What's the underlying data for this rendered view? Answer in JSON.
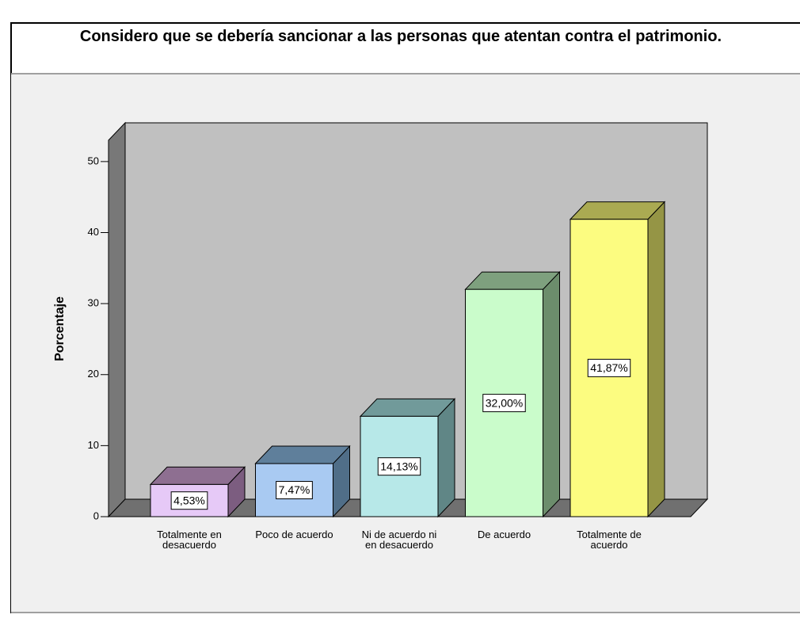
{
  "chart_data": {
    "type": "bar3d",
    "title": "Considero que se debería sancionar a las personas que atentan contra el patrimonio.",
    "ylabel": "Porcentaje",
    "categories": [
      "Totalmente en desacuerdo",
      "Poco de acuerdo",
      "Ni de acuerdo ni en desacuerdo",
      "De acuerdo",
      "Totalmente de acuerdo"
    ],
    "values": [
      4.53,
      7.47,
      14.13,
      32.0,
      41.87
    ],
    "value_labels": [
      "4,53%",
      "7,47%",
      "14,13%",
      "32,00%",
      "41,87%"
    ],
    "colors": [
      [
        "#e6c9f7",
        "#8e6f91",
        "#7c5d80"
      ],
      [
        "#a9caf2",
        "#5f7f9b",
        "#506e88"
      ],
      [
        "#b7e8e8",
        "#719a9a",
        "#608686"
      ],
      [
        "#cafccb",
        "#7ea07e",
        "#6c8d6c"
      ],
      [
        "#fcfc80",
        "#aaaa52",
        "#959545"
      ]
    ],
    "ylim": [
      0,
      53
    ],
    "yticks": [
      0,
      10,
      20,
      30,
      40,
      50
    ]
  }
}
